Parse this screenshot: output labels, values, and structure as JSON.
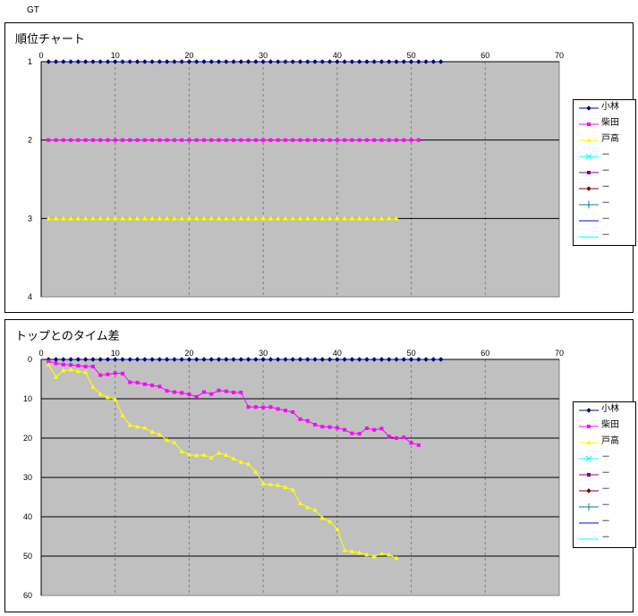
{
  "page_label": "GT",
  "legend_entries": [
    "小林",
    "柴田",
    "戸高",
    "－",
    "－",
    "－",
    "－",
    "－",
    "－"
  ],
  "chart_data": [
    {
      "type": "line",
      "title": "順位チャート",
      "xlim": [
        0,
        70
      ],
      "x_ticks": [
        0,
        10,
        20,
        30,
        40,
        50,
        60,
        70
      ],
      "ylim": [
        1,
        4
      ],
      "y_ticks": [
        1,
        2,
        3,
        4
      ],
      "y_inverted": true,
      "grid": true,
      "legend": "right",
      "series": [
        {
          "name": "小林",
          "color": "#000080",
          "marker": "diamond",
          "x_start": 1,
          "x_end": 54,
          "values": "constant",
          "y": 1
        },
        {
          "name": "柴田",
          "color": "#ff00ff",
          "marker": "square",
          "x_start": 1,
          "x_end": 51,
          "values": "constant",
          "y": 2
        },
        {
          "name": "戸高",
          "color": "#ffff00",
          "marker": "triangle",
          "x_start": 1,
          "x_end": 48,
          "values": "constant",
          "y": 3
        }
      ]
    },
    {
      "type": "line",
      "title": "トップとのタイム差",
      "xlim": [
        0,
        70
      ],
      "x_ticks": [
        0,
        10,
        20,
        30,
        40,
        50,
        60,
        70
      ],
      "ylim": [
        0,
        60
      ],
      "y_ticks": [
        0,
        10,
        20,
        30,
        40,
        50,
        60
      ],
      "y_inverted": true,
      "grid": true,
      "legend": "right",
      "series": [
        {
          "name": "小林",
          "color": "#000080",
          "marker": "diamond",
          "x": [
            1,
            2,
            3,
            4,
            5,
            6,
            7,
            8,
            9,
            10,
            11,
            12,
            13,
            14,
            15,
            16,
            17,
            18,
            19,
            20,
            21,
            22,
            23,
            24,
            25,
            26,
            27,
            28,
            29,
            30,
            31,
            32,
            33,
            34,
            35,
            36,
            37,
            38,
            39,
            40,
            41,
            42,
            43,
            44,
            45,
            46,
            47,
            48,
            49,
            50,
            51,
            52,
            53,
            54
          ],
          "y": [
            0,
            0,
            0,
            0,
            0,
            0,
            0,
            0,
            0,
            0,
            0,
            0,
            0,
            0,
            0,
            0,
            0,
            0,
            0,
            0,
            0,
            0,
            0,
            0,
            0,
            0,
            0,
            0,
            0,
            0,
            0,
            0,
            0,
            0,
            0,
            0,
            0,
            0,
            0,
            0,
            0,
            0,
            0,
            0,
            0,
            0,
            0,
            0,
            0,
            0,
            0,
            0,
            0,
            0
          ]
        },
        {
          "name": "柴田",
          "color": "#ff00ff",
          "marker": "square",
          "x": [
            1,
            2,
            3,
            4,
            5,
            6,
            7,
            8,
            9,
            10,
            11,
            12,
            13,
            14,
            15,
            16,
            17,
            18,
            19,
            20,
            21,
            22,
            23,
            24,
            25,
            26,
            27,
            28,
            29,
            30,
            31,
            32,
            33,
            34,
            35,
            36,
            37,
            38,
            39,
            40,
            41,
            42,
            43,
            44,
            45,
            46,
            47,
            48,
            49,
            50,
            51
          ],
          "y": [
            0.5,
            1,
            1.3,
            1.4,
            1.6,
            1.8,
            1.8,
            4,
            3.8,
            3.5,
            3.6,
            5.8,
            5.9,
            6.3,
            6.6,
            6.9,
            8,
            8.3,
            8.5,
            8.9,
            9.5,
            8.3,
            8.8,
            7.9,
            8.1,
            8.4,
            8.4,
            12.1,
            12.1,
            12.2,
            12.1,
            12.6,
            13,
            13.4,
            15.2,
            15.6,
            16.6,
            17.1,
            17.2,
            17.4,
            17.9,
            18.8,
            18.9,
            17.5,
            17.9,
            17.6,
            19.6,
            20,
            19.8,
            21.2,
            21.8
          ]
        },
        {
          "name": "戸高",
          "color": "#ffff00",
          "marker": "triangle",
          "x": [
            1,
            2,
            3,
            4,
            5,
            6,
            7,
            8,
            9,
            10,
            11,
            12,
            13,
            14,
            15,
            16,
            17,
            18,
            19,
            20,
            21,
            22,
            23,
            24,
            25,
            26,
            27,
            28,
            29,
            30,
            31,
            32,
            33,
            34,
            35,
            36,
            37,
            38,
            39,
            40,
            41,
            42,
            43,
            44,
            45,
            46,
            47,
            48
          ],
          "y": [
            1.3,
            4.5,
            2.8,
            2.6,
            3,
            3.3,
            7,
            8.8,
            9.6,
            10.1,
            14.3,
            16.7,
            17.1,
            17.4,
            18.4,
            19.1,
            20.5,
            21.1,
            23.4,
            24.2,
            24.4,
            24.3,
            25,
            23.8,
            24.3,
            25.2,
            26.1,
            26.6,
            28.6,
            31.6,
            31.8,
            32,
            32.5,
            33.1,
            36.6,
            37.6,
            38.3,
            40.3,
            41.2,
            43.2,
            48.5,
            48.8,
            49.1,
            49.6,
            50.1,
            49.4,
            49.6,
            50.5
          ]
        }
      ]
    }
  ]
}
